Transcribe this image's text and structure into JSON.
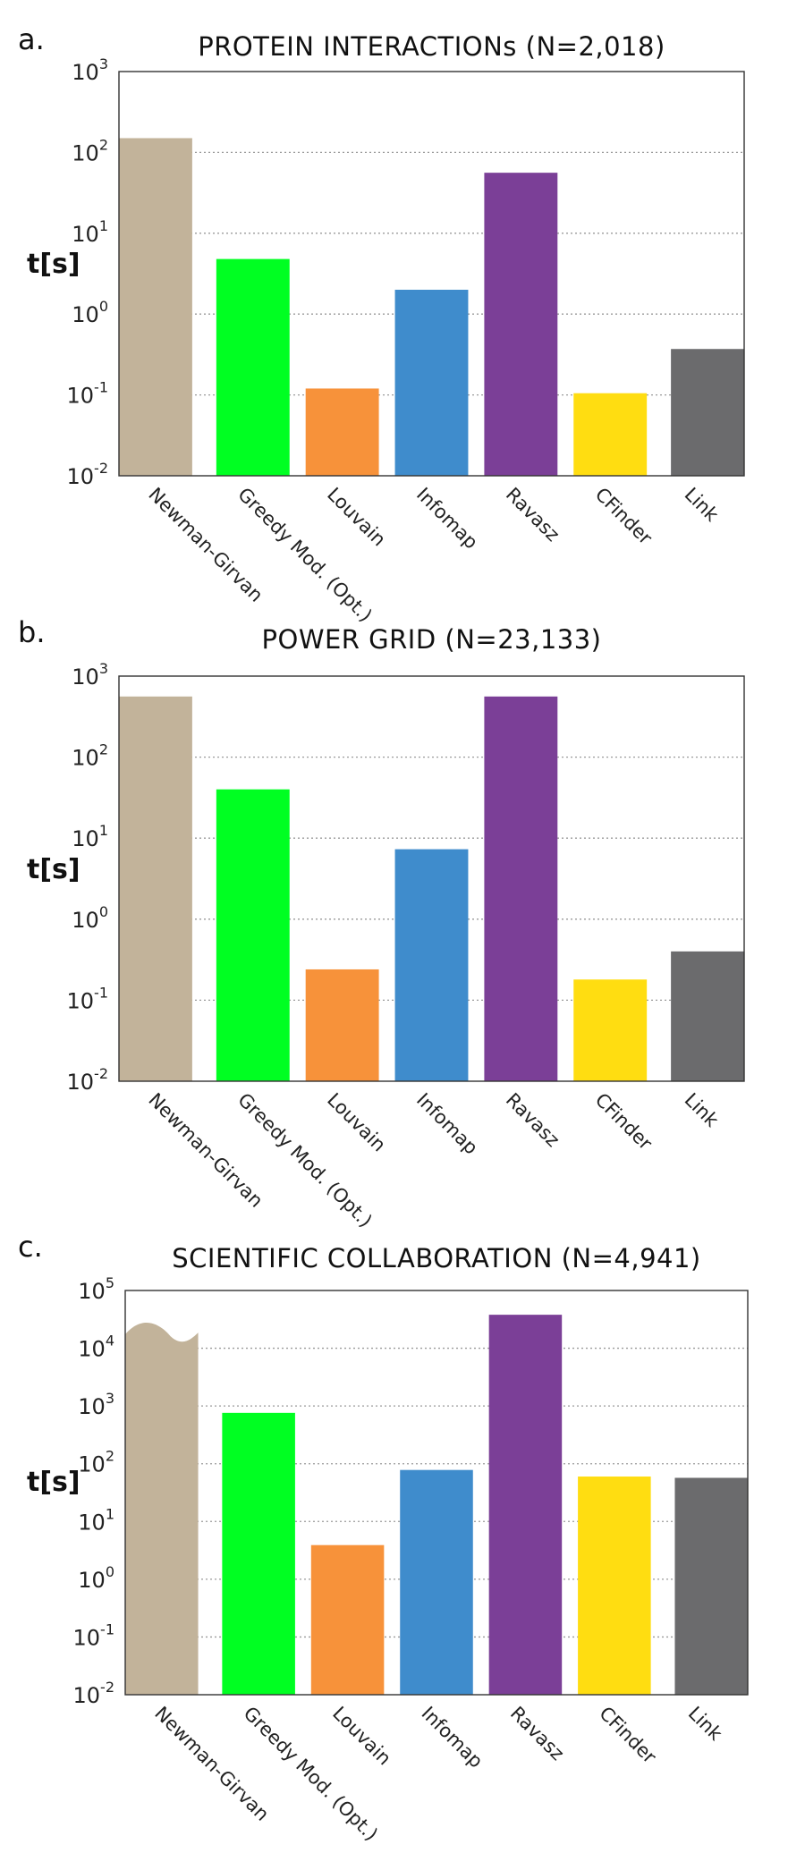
{
  "chart_data": [
    {
      "type": "bar",
      "panel": "a.",
      "title": "PROTEIN INTERACTIONs (N=2,018)",
      "ylabel": "t[s]",
      "yscale": "log",
      "ylim": [
        0.01,
        1000
      ],
      "yticks": [
        {
          "base": "10",
          "exp": "-2"
        },
        {
          "base": "10",
          "exp": "-1"
        },
        {
          "base": "10",
          "exp": "0"
        },
        {
          "base": "10",
          "exp": "1"
        },
        {
          "base": "10",
          "exp": "2"
        },
        {
          "base": "10",
          "exp": "3"
        }
      ],
      "grid": "dotted horizontal",
      "categories": [
        "Newman-Girvan",
        "Greedy Mod. (Opt.)",
        "Louvain",
        "Infomap",
        "Ravasz",
        "CFinder",
        "Link"
      ],
      "values": [
        150,
        4.8,
        0.12,
        2.0,
        56,
        0.105,
        0.37
      ],
      "colors": [
        "#c2b39a",
        "#00ff22",
        "#f7923a",
        "#3f8ccc",
        "#7b3f97",
        "#ffdd11",
        "#6b6b6d"
      ]
    },
    {
      "type": "bar",
      "panel": "b.",
      "title": "POWER GRID (N=23,133)",
      "ylabel": "t[s]",
      "yscale": "log",
      "ylim": [
        0.01,
        1000
      ],
      "yticks": [
        {
          "base": "10",
          "exp": "-2"
        },
        {
          "base": "10",
          "exp": "-1"
        },
        {
          "base": "10",
          "exp": "0"
        },
        {
          "base": "10",
          "exp": "1"
        },
        {
          "base": "10",
          "exp": "2"
        },
        {
          "base": "10",
          "exp": "3"
        }
      ],
      "grid": "dotted horizontal",
      "categories": [
        "Newman-Girvan",
        "Greedy Mod. (Opt.)",
        "Louvain",
        "Infomap",
        "Ravasz",
        "CFinder",
        "Link"
      ],
      "values": [
        560,
        40,
        0.24,
        7.3,
        560,
        0.18,
        0.4
      ],
      "colors": [
        "#c2b39a",
        "#00ff22",
        "#f7923a",
        "#3f8ccc",
        "#7b3f97",
        "#ffdd11",
        "#6b6b6d"
      ]
    },
    {
      "type": "bar",
      "panel": "c.",
      "title": "SCIENTIFIC COLLABORATION (N=4,941)",
      "ylabel": "t[s]",
      "yscale": "log",
      "ylim": [
        0.01,
        100000
      ],
      "yticks": [
        {
          "base": "10",
          "exp": "-2"
        },
        {
          "base": "10",
          "exp": "-1"
        },
        {
          "base": "10",
          "exp": "0"
        },
        {
          "base": "10",
          "exp": "1"
        },
        {
          "base": "10",
          "exp": "2"
        },
        {
          "base": "10",
          "exp": "3"
        },
        {
          "base": "10",
          "exp": "4"
        },
        {
          "base": "10",
          "exp": "5"
        }
      ],
      "grid": "dotted horizontal",
      "categories": [
        "Newman-Girvan",
        "Greedy Mod. (Opt.)",
        "Louvain",
        "Infomap",
        "Ravasz",
        "CFinder",
        "Link"
      ],
      "values": [
        20000,
        760,
        3.9,
        78,
        38000,
        60,
        57
      ],
      "broken_bar": "Newman-Girvan",
      "colors": [
        "#c2b39a",
        "#00ff22",
        "#f7923a",
        "#3f8ccc",
        "#7b3f97",
        "#ffdd11",
        "#6b6b6d"
      ]
    }
  ]
}
